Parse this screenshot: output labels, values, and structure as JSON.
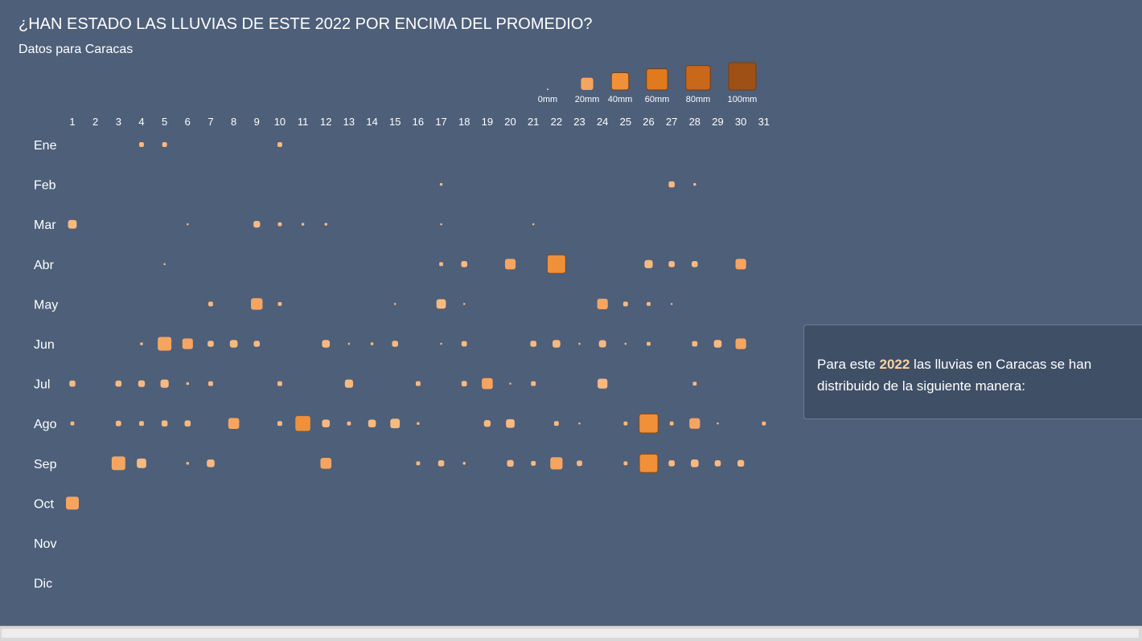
{
  "title": "¿HAN ESTADO LAS LLUVIAS DE ESTE 2022 POR ENCIMA DEL PROMEDIO?",
  "subtitle": "Datos para Caracas",
  "info": {
    "text_before": "Para este ",
    "year": "2022",
    "text_after": " las lluvias en Caracas se han distribuido de la siguiente manera:"
  },
  "colors": {
    "background": "#4e5f79",
    "panel": "#3f4f66",
    "highlight_text": "#fcd29a",
    "scale": [
      "#f7b980",
      "#f5a560",
      "#f09038",
      "#e07a1e",
      "#c9681a",
      "#9e5015"
    ]
  },
  "chart_data": {
    "type": "heatmap",
    "encoding": "square size and color proportional to daily rainfall (mm)",
    "x_labels": [
      "1",
      "2",
      "3",
      "4",
      "5",
      "6",
      "7",
      "8",
      "9",
      "10",
      "11",
      "12",
      "13",
      "14",
      "15",
      "16",
      "17",
      "18",
      "19",
      "20",
      "21",
      "22",
      "23",
      "24",
      "25",
      "26",
      "27",
      "28",
      "29",
      "30",
      "31"
    ],
    "y_labels": [
      "Ene",
      "Feb",
      "Mar",
      "Abr",
      "May",
      "Jun",
      "Jul",
      "Ago",
      "Sep",
      "Oct",
      "Nov",
      "Dic"
    ],
    "legend": {
      "position": "top-right",
      "values": [
        0,
        20,
        40,
        60,
        80,
        100
      ],
      "labels": [
        "0mm",
        "20mm",
        "40mm",
        "60mm",
        "80mm",
        "100mm"
      ]
    },
    "values": [
      [
        0,
        0,
        0,
        3,
        3,
        0,
        0,
        0,
        0,
        3,
        0,
        0,
        0,
        0,
        0,
        0,
        0,
        0,
        0,
        0,
        0,
        0,
        0,
        0,
        0,
        0,
        0,
        0,
        0,
        0,
        0
      ],
      [
        0,
        0,
        0,
        0,
        0,
        0,
        0,
        0,
        0,
        0,
        0,
        0,
        0,
        0,
        0,
        0,
        1,
        0,
        0,
        0,
        0,
        0,
        0,
        0,
        0,
        0,
        5,
        1,
        0,
        0,
        0
      ],
      [
        10,
        0,
        0,
        0,
        0,
        0.5,
        0,
        0,
        6,
        2,
        1,
        1,
        0,
        0,
        0,
        0,
        0.5,
        0,
        0,
        0,
        0.5,
        0,
        0,
        0,
        0,
        0,
        0,
        0,
        0,
        0,
        0
      ],
      [
        0,
        0,
        0,
        0,
        0.5,
        0,
        0,
        0,
        0,
        0,
        0,
        0,
        0,
        0,
        0,
        0,
        2,
        5,
        0,
        15,
        0,
        45,
        0,
        0,
        0,
        9,
        5,
        5,
        0,
        15
      ],
      [
        0,
        0,
        0,
        0,
        0,
        0,
        3,
        0,
        18,
        2,
        0,
        0,
        0,
        0,
        0.5,
        0,
        12,
        0.5,
        0,
        0,
        0,
        0,
        0,
        15,
        3,
        2,
        0.5,
        0,
        0,
        0,
        0
      ],
      [
        0,
        0,
        0,
        1,
        25,
        15,
        5,
        8,
        5,
        0,
        0,
        8,
        0.5,
        1,
        5,
        0,
        0.5,
        4,
        0,
        0,
        5,
        8,
        0.5,
        7,
        0.5,
        2,
        0,
        4,
        8,
        15,
        0
      ],
      [
        5,
        0,
        5,
        6,
        9,
        1,
        3,
        0,
        0,
        3,
        0,
        0,
        9,
        0,
        0,
        3,
        0,
        4,
        16,
        0.5,
        3,
        0,
        0,
        13,
        0,
        0,
        0,
        2,
        0,
        0,
        0
      ],
      [
        2,
        0,
        4,
        3,
        5,
        5,
        0,
        16,
        0,
        3,
        30,
        8,
        2,
        8,
        12,
        1,
        0,
        0,
        6,
        10,
        0,
        3,
        0.5,
        0,
        2,
        48,
        2,
        15,
        0.5,
        0,
        2
      ],
      [
        0,
        0,
        25,
        12,
        0,
        1,
        8,
        0,
        0,
        0,
        0,
        16,
        0,
        0,
        0,
        2,
        5,
        1,
        0,
        6,
        3,
        20,
        4,
        0,
        2,
        45,
        5,
        8,
        5,
        6,
        0
      ],
      [
        22,
        0,
        0,
        0,
        0,
        0,
        0,
        0,
        0,
        0,
        0,
        0,
        0,
        0,
        0,
        0,
        0,
        0,
        0,
        0,
        0,
        0,
        0,
        0,
        0,
        0,
        0,
        0,
        0,
        0,
        0
      ],
      [],
      []
    ]
  }
}
